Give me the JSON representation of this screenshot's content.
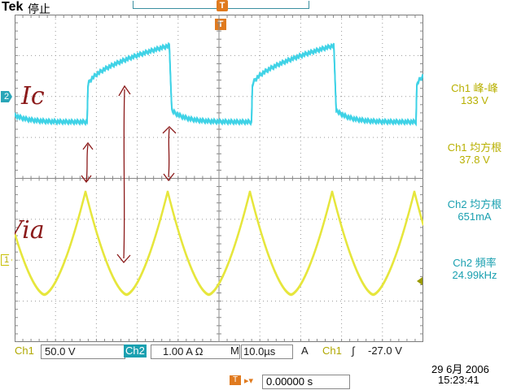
{
  "header": {
    "brand": "Tek",
    "state": "停止"
  },
  "markers": {
    "trigger_top": "T",
    "trigger_t": "T",
    "ch2": "2",
    "ch1": "1"
  },
  "annotations": {
    "ic": "Ic",
    "via": "Via"
  },
  "measurements": [
    {
      "label": "Ch1 峰-峰",
      "value": "133 V",
      "channel": "ch1"
    },
    {
      "label": "Ch1 均方根",
      "value": "37.8 V",
      "channel": "ch1"
    },
    {
      "label": "Ch2 均方根",
      "value": "651mA",
      "channel": "ch2"
    },
    {
      "label": "Ch2 頻率",
      "value": "24.99kHz",
      "channel": "ch2"
    }
  ],
  "bottom": {
    "ch1_label": "Ch1",
    "ch1_scale": "50.0 V",
    "ch2_label": "Ch2",
    "ch2_scale": "1.00 A Ω",
    "time_prefix": "M",
    "time_scale": "10.0µs",
    "trig_prefix": "A",
    "trig_source": "Ch1",
    "trig_slope": "∫",
    "trig_level": "-27.0 V"
  },
  "trigger_position": {
    "icon": "T",
    "value": "0.00000 s"
  },
  "datetime": {
    "date": "29 6月  2006",
    "time": "15:23:41"
  },
  "colors": {
    "ch1": "#e6e63c",
    "ch2": "#3cd2e6",
    "grid": "#9a9a9a",
    "annotation": "#8b1a1a",
    "marker": "#e07a1e"
  }
}
